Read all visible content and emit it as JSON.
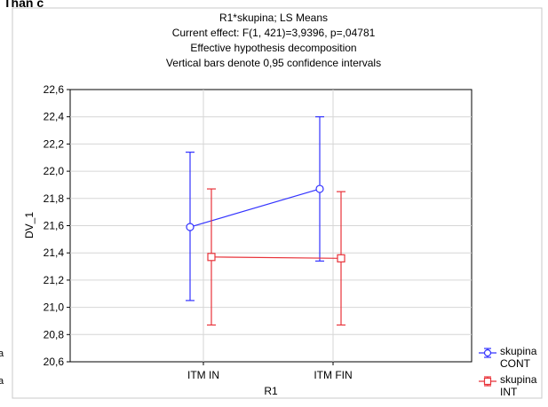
{
  "clipped_header": "Than c",
  "clipped_margin": [
    "a",
    "a"
  ],
  "chart_data": {
    "type": "line",
    "title_lines": [
      "R1*skupina; LS Means",
      "Current effect: F(1, 421)=3,9396, p=,04781",
      "Effective hypothesis decomposition",
      "Vertical bars denote 0,95 confidence intervals"
    ],
    "xlabel": "R1",
    "ylabel": "DV_1",
    "categories": [
      "ITM IN",
      "ITM FIN"
    ],
    "ylim": [
      20.6,
      22.6
    ],
    "yticks": [
      "20,6",
      "20,8",
      "21,0",
      "21,2",
      "21,4",
      "21,6",
      "21,8",
      "22,0",
      "22,2",
      "22,4",
      "22,6"
    ],
    "grid": true,
    "legend_position": "bottom-right",
    "series": [
      {
        "name": "skupina CONT",
        "legend_lines": [
          "skupina",
          "CONT"
        ],
        "color": "#3333ff",
        "marker": "circle",
        "values": [
          21.59,
          21.87
        ],
        "ci_low": [
          21.05,
          21.34
        ],
        "ci_high": [
          22.14,
          22.4
        ]
      },
      {
        "name": "skupina INT",
        "legend_lines": [
          "skupina",
          "INT"
        ],
        "color": "#e8333a",
        "marker": "square",
        "values": [
          21.37,
          21.36
        ],
        "ci_low": [
          20.87,
          20.87
        ],
        "ci_high": [
          21.87,
          21.85
        ]
      }
    ]
  }
}
